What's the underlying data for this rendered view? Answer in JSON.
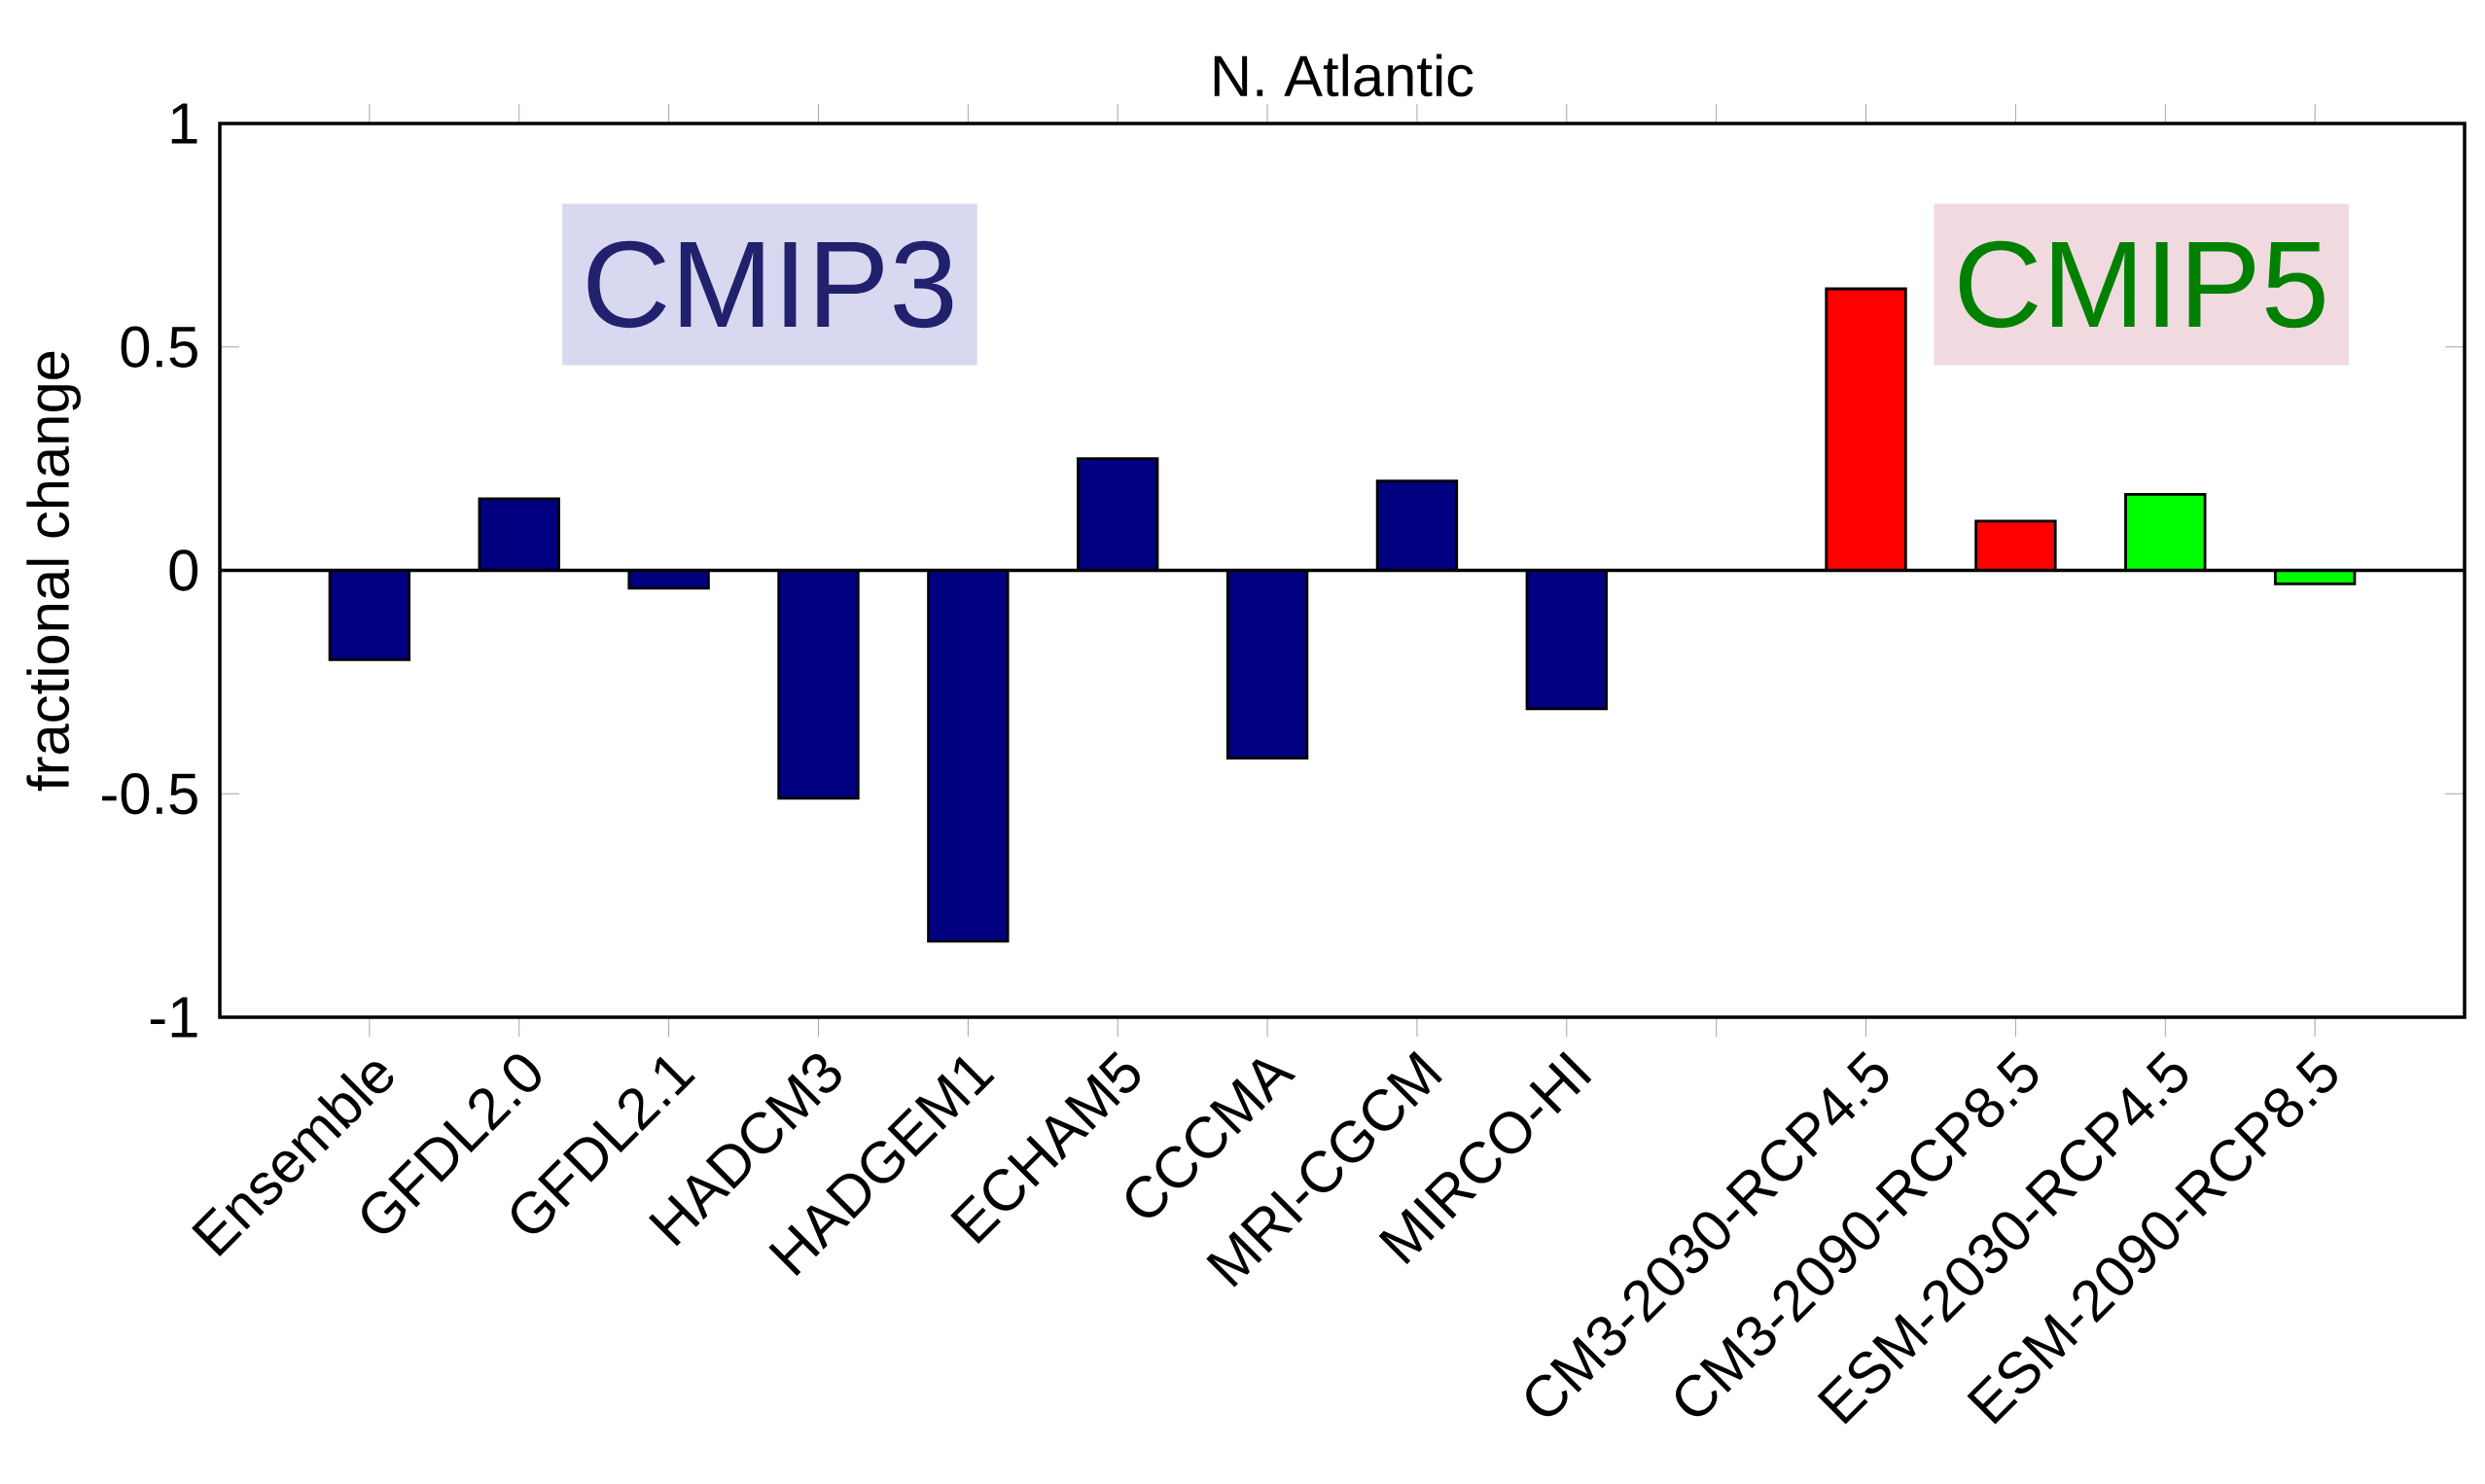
{
  "chart_data": {
    "type": "bar",
    "title": "N. Atlantic",
    "ylabel": "fractional change",
    "categories": [
      "Ensemble",
      "GFDL2.0",
      "GFDL2.1",
      "HADCM3",
      "HADGEM1",
      "ECHAM5",
      "CCCMA",
      "MRI-CGCM",
      "MIRCO-HI",
      null,
      "CM3-2030-RCP4.5",
      "CM3-2090-RCP8.5",
      "ESM-2030-RCP4.5",
      "ESM-2090-RCP8.5"
    ],
    "values": [
      -0.2,
      0.16,
      -0.04,
      -0.51,
      -0.83,
      0.25,
      -0.42,
      0.2,
      -0.31,
      null,
      0.63,
      0.11,
      0.17,
      -0.03
    ],
    "colors": [
      "#000080",
      "#000080",
      "#000080",
      "#000080",
      "#000080",
      "#000080",
      "#000080",
      "#000080",
      "#000080",
      "#000080",
      "#ff0000",
      "#ff0000",
      "#00ff00",
      "#00ff00"
    ],
    "ylim": [
      -1,
      1
    ],
    "yticks": [
      -1,
      -0.5,
      0,
      0.5,
      1
    ],
    "grid": false,
    "ref_lines": [
      {
        "axis": "y",
        "value": 0,
        "color": "#000000"
      }
    ],
    "annotations": [
      "CMIP3",
      "CMIP5"
    ]
  }
}
